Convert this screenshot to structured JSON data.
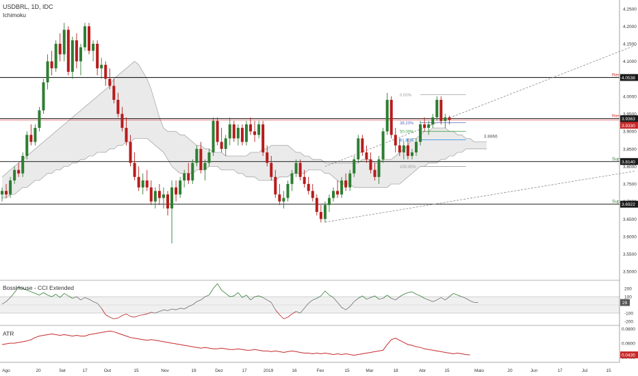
{
  "header": {
    "symbol_line": "USDBRL, 1D, IDC",
    "indicator": "Ichimoku"
  },
  "cci_panel": {
    "title": "BossHouse - CCI Extended"
  },
  "atr_panel": {
    "title": "ATR"
  },
  "colors": {
    "up": "#2e7d32",
    "down": "#b71c1c",
    "cloud": "#e6e6e6",
    "cloud_edge": "#a8a8a8",
    "res_label": "#d32f2f",
    "sup_label": "#2e7d32",
    "grid": "#d0d0d0",
    "fib_0": "#9e9e9e",
    "fib_38": "#5c6bc0",
    "fib_50": "#43a047",
    "fib_61": "#1e88e5",
    "channel": "#888888",
    "cci_line": "#6d6d6d",
    "atr_line": "#c62828",
    "badge_dark": "#1a1a1a",
    "badge_red": "#c62828"
  },
  "chart_data": [
    {
      "type": "candlestick",
      "title": "USDBRL, 1D, IDC",
      "subtitle": "Ichimoku",
      "ylim": [
        3.475,
        4.275
      ],
      "y_ticks": [
        "4.2500",
        "4.2000",
        "4.1500",
        "4.1000",
        "4.0500",
        "4.0000",
        "3.9500",
        "3.9000",
        "3.8500",
        "3.8000",
        "3.7500",
        "3.7000",
        "3.6500",
        "3.6000",
        "3.5500",
        "3.5000"
      ],
      "x_ticks": [
        "Ago",
        "20",
        "Set",
        "17",
        "Out",
        "15",
        "Nov",
        "19",
        "Dez",
        "17",
        "2019",
        "16",
        "Fev",
        "15",
        "Mar",
        "18",
        "Abr",
        "15",
        "Maio",
        "20",
        "Jun",
        "17",
        "Jul",
        "15"
      ],
      "ohlc": [
        [
          3.72,
          3.74,
          3.7,
          3.73
        ],
        [
          3.73,
          3.75,
          3.71,
          3.72
        ],
        [
          3.72,
          3.77,
          3.71,
          3.76
        ],
        [
          3.76,
          3.8,
          3.75,
          3.79
        ],
        [
          3.79,
          3.81,
          3.77,
          3.78
        ],
        [
          3.78,
          3.84,
          3.77,
          3.83
        ],
        [
          3.83,
          3.9,
          3.82,
          3.89
        ],
        [
          3.89,
          3.92,
          3.86,
          3.87
        ],
        [
          3.87,
          3.92,
          3.86,
          3.91
        ],
        [
          3.91,
          3.97,
          3.9,
          3.96
        ],
        [
          3.96,
          4.05,
          3.95,
          4.04
        ],
        [
          4.04,
          4.12,
          4.02,
          4.1
        ],
        [
          4.1,
          4.13,
          4.06,
          4.08
        ],
        [
          4.08,
          4.16,
          4.07,
          4.15
        ],
        [
          4.15,
          4.18,
          4.1,
          4.12
        ],
        [
          4.12,
          4.21,
          4.1,
          4.19
        ],
        [
          4.19,
          4.2,
          4.06,
          4.07
        ],
        [
          4.07,
          4.17,
          4.05,
          4.16
        ],
        [
          4.16,
          4.18,
          4.08,
          4.1
        ],
        [
          4.1,
          4.15,
          4.06,
          4.14
        ],
        [
          4.14,
          4.21,
          4.13,
          4.2
        ],
        [
          4.2,
          4.21,
          4.12,
          4.13
        ],
        [
          4.13,
          4.16,
          4.1,
          4.15
        ],
        [
          4.15,
          4.16,
          4.06,
          4.08
        ],
        [
          4.08,
          4.11,
          4.05,
          4.09
        ],
        [
          4.09,
          4.1,
          4.03,
          4.05
        ],
        [
          4.05,
          4.08,
          4.02,
          4.03
        ],
        [
          4.03,
          4.05,
          3.98,
          3.99
        ],
        [
          3.99,
          4.01,
          3.94,
          3.95
        ],
        [
          3.95,
          3.97,
          3.9,
          3.91
        ],
        [
          3.91,
          3.94,
          3.86,
          3.87
        ],
        [
          3.87,
          3.89,
          3.8,
          3.81
        ],
        [
          3.81,
          3.84,
          3.76,
          3.77
        ],
        [
          3.77,
          3.8,
          3.73,
          3.74
        ],
        [
          3.74,
          3.78,
          3.72,
          3.76
        ],
        [
          3.76,
          3.79,
          3.73,
          3.74
        ],
        [
          3.74,
          3.76,
          3.69,
          3.7
        ],
        [
          3.7,
          3.74,
          3.68,
          3.73
        ],
        [
          3.73,
          3.75,
          3.69,
          3.71
        ],
        [
          3.71,
          3.74,
          3.68,
          3.72
        ],
        [
          3.72,
          3.73,
          3.66,
          3.68
        ],
        [
          3.68,
          3.76,
          3.58,
          3.74
        ],
        [
          3.74,
          3.76,
          3.7,
          3.72
        ],
        [
          3.72,
          3.77,
          3.71,
          3.76
        ],
        [
          3.76,
          3.79,
          3.74,
          3.78
        ],
        [
          3.78,
          3.81,
          3.75,
          3.76
        ],
        [
          3.76,
          3.82,
          3.75,
          3.81
        ],
        [
          3.81,
          3.86,
          3.8,
          3.85
        ],
        [
          3.85,
          3.87,
          3.78,
          3.79
        ],
        [
          3.79,
          3.82,
          3.76,
          3.81
        ],
        [
          3.81,
          3.85,
          3.8,
          3.84
        ],
        [
          3.84,
          3.94,
          3.83,
          3.93
        ],
        [
          3.93,
          3.94,
          3.86,
          3.87
        ],
        [
          3.87,
          3.91,
          3.84,
          3.85
        ],
        [
          3.85,
          3.89,
          3.83,
          3.88
        ],
        [
          3.88,
          3.94,
          3.86,
          3.92
        ],
        [
          3.92,
          3.93,
          3.87,
          3.88
        ],
        [
          3.88,
          3.92,
          3.86,
          3.91
        ],
        [
          3.91,
          3.92,
          3.86,
          3.87
        ],
        [
          3.87,
          3.93,
          3.86,
          3.92
        ],
        [
          3.92,
          3.94,
          3.89,
          3.9
        ],
        [
          3.9,
          3.93,
          3.87,
          3.89
        ],
        [
          3.89,
          3.93,
          3.88,
          3.92
        ],
        [
          3.92,
          3.93,
          3.83,
          3.84
        ],
        [
          3.84,
          3.86,
          3.8,
          3.81
        ],
        [
          3.81,
          3.83,
          3.76,
          3.77
        ],
        [
          3.77,
          3.79,
          3.71,
          3.72
        ],
        [
          3.72,
          3.75,
          3.69,
          3.7
        ],
        [
          3.7,
          3.73,
          3.68,
          3.71
        ],
        [
          3.71,
          3.76,
          3.7,
          3.75
        ],
        [
          3.75,
          3.79,
          3.73,
          3.78
        ],
        [
          3.78,
          3.82,
          3.77,
          3.81
        ],
        [
          3.81,
          3.82,
          3.76,
          3.77
        ],
        [
          3.77,
          3.79,
          3.74,
          3.75
        ],
        [
          3.75,
          3.77,
          3.72,
          3.73
        ],
        [
          3.73,
          3.75,
          3.7,
          3.71
        ],
        [
          3.71,
          3.72,
          3.66,
          3.67
        ],
        [
          3.67,
          3.69,
          3.64,
          3.65
        ],
        [
          3.65,
          3.7,
          3.64,
          3.69
        ],
        [
          3.69,
          3.72,
          3.67,
          3.71
        ],
        [
          3.71,
          3.74,
          3.7,
          3.73
        ],
        [
          3.73,
          3.76,
          3.71,
          3.72
        ],
        [
          3.72,
          3.77,
          3.71,
          3.76
        ],
        [
          3.76,
          3.78,
          3.73,
          3.74
        ],
        [
          3.74,
          3.79,
          3.73,
          3.78
        ],
        [
          3.78,
          3.83,
          3.77,
          3.82
        ],
        [
          3.82,
          3.89,
          3.81,
          3.88
        ],
        [
          3.88,
          3.89,
          3.83,
          3.84
        ],
        [
          3.84,
          3.86,
          3.81,
          3.82
        ],
        [
          3.82,
          3.84,
          3.78,
          3.79
        ],
        [
          3.79,
          3.81,
          3.76,
          3.77
        ],
        [
          3.77,
          3.83,
          3.75,
          3.82
        ],
        [
          3.82,
          3.91,
          3.81,
          3.9
        ],
        [
          3.9,
          4.01,
          3.89,
          3.99
        ],
        [
          3.99,
          4.0,
          3.88,
          3.89
        ],
        [
          3.89,
          3.91,
          3.84,
          3.86
        ],
        [
          3.86,
          3.88,
          3.83,
          3.84
        ],
        [
          3.84,
          3.87,
          3.82,
          3.86
        ],
        [
          3.86,
          3.88,
          3.82,
          3.83
        ],
        [
          3.83,
          3.85,
          3.82,
          3.84
        ],
        [
          3.84,
          3.88,
          3.83,
          3.87
        ],
        [
          3.87,
          3.93,
          3.86,
          3.92
        ],
        [
          3.92,
          3.94,
          3.9,
          3.91
        ],
        [
          3.91,
          3.93,
          3.89,
          3.92
        ],
        [
          3.92,
          3.95,
          3.91,
          3.94
        ],
        [
          3.94,
          4.0,
          3.93,
          3.99
        ],
        [
          3.99,
          4.0,
          3.92,
          3.93
        ],
        [
          3.93,
          3.95,
          3.91,
          3.94
        ],
        [
          3.94,
          3.945,
          3.92,
          3.933
        ]
      ],
      "ichimoku_cloud_upper": [
        3.77,
        3.78,
        3.79,
        3.8,
        3.81,
        3.82,
        3.83,
        3.84,
        3.85,
        3.86,
        3.87,
        3.88,
        3.89,
        3.9,
        3.91,
        3.92,
        3.93,
        3.94,
        3.95,
        3.96,
        3.97,
        3.98,
        3.99,
        4.0,
        4.01,
        4.02,
        4.03,
        4.05,
        4.06,
        4.07,
        4.08,
        4.09,
        4.1,
        4.09,
        4.07,
        4.05,
        4.02,
        3.98,
        3.94,
        3.91,
        3.9,
        3.9,
        3.9,
        3.89,
        3.89,
        3.88,
        3.87,
        3.86,
        3.86,
        3.85,
        3.85,
        3.84,
        3.84,
        3.84,
        3.83,
        3.83,
        3.83,
        3.83,
        3.83,
        3.83,
        3.84,
        3.84,
        3.84,
        3.85,
        3.85,
        3.86,
        3.86,
        3.86,
        3.86,
        3.86,
        3.85,
        3.84,
        3.84,
        3.83,
        3.83,
        3.82,
        3.82,
        3.82,
        3.81,
        3.81,
        3.81,
        3.81,
        3.81,
        3.81,
        3.81,
        3.81,
        3.81,
        3.82,
        3.82,
        3.82,
        3.81,
        3.81,
        3.82,
        3.82,
        3.82,
        3.83,
        3.84,
        3.85,
        3.86,
        3.88,
        3.88,
        3.89,
        3.9,
        3.9,
        3.91,
        3.91,
        3.91,
        3.91,
        3.9,
        3.9,
        3.89,
        3.89,
        3.88,
        3.88,
        3.87,
        3.87,
        3.87,
        3.87
      ],
      "ichimoku_cloud_lower": [
        3.71,
        3.71,
        3.72,
        3.72,
        3.73,
        3.74,
        3.74,
        3.75,
        3.76,
        3.76,
        3.77,
        3.78,
        3.78,
        3.79,
        3.79,
        3.8,
        3.8,
        3.81,
        3.81,
        3.82,
        3.82,
        3.83,
        3.83,
        3.84,
        3.84,
        3.84,
        3.85,
        3.85,
        3.86,
        3.86,
        3.87,
        3.87,
        3.88,
        3.88,
        3.88,
        3.88,
        3.87,
        3.86,
        3.85,
        3.84,
        3.82,
        3.8,
        3.79,
        3.78,
        3.78,
        3.78,
        3.78,
        3.79,
        3.79,
        3.79,
        3.8,
        3.8,
        3.8,
        3.79,
        3.79,
        3.79,
        3.79,
        3.78,
        3.78,
        3.77,
        3.77,
        3.77,
        3.76,
        3.76,
        3.76,
        3.76,
        3.76,
        3.77,
        3.77,
        3.77,
        3.78,
        3.78,
        3.78,
        3.78,
        3.79,
        3.79,
        3.79,
        3.79,
        3.78,
        3.78,
        3.77,
        3.76,
        3.75,
        3.75,
        3.75,
        3.74,
        3.74,
        3.74,
        3.74,
        3.74,
        3.74,
        3.74,
        3.74,
        3.74,
        3.75,
        3.75,
        3.75,
        3.76,
        3.77,
        3.78,
        3.79,
        3.8,
        3.8,
        3.81,
        3.81,
        3.81,
        3.82,
        3.82,
        3.83,
        3.83,
        3.84,
        3.84,
        3.85,
        3.85,
        3.85,
        3.85,
        3.85,
        3.85
      ],
      "horizontal_levels": [
        {
          "label": "Res",
          "value": 4.0538,
          "text": "4.0538"
        },
        {
          "label": "Res",
          "value": 3.9363,
          "text": "3.9363"
        },
        {
          "label": "Sup",
          "value": 3.814,
          "text": "3.8140"
        },
        {
          "label": "Sup",
          "value": 3.6922,
          "text": "3.6922"
        }
      ],
      "last_price": {
        "value": 3.933,
        "text": "3.9330"
      },
      "fibonacci": [
        {
          "label": "0.00%",
          "value": 4.005
        },
        {
          "label": "38.20%",
          "value": 3.925
        },
        {
          "label": "50.00%",
          "value": 3.9
        },
        {
          "label": "61.80%",
          "value": 3.876
        },
        {
          "label": "100.00%",
          "value": 3.8
        }
      ],
      "fib_target_label": "3.8866",
      "channel_lower": {
        "start": [
          78,
          3.641
        ],
        "end": [
          153,
          3.787
        ]
      },
      "channel_upper": {
        "start": [
          78,
          3.8
        ],
        "end": [
          153,
          4.146
        ]
      }
    },
    {
      "type": "line",
      "title": "BossHouse - CCI Extended",
      "ylim": [
        -250,
        300
      ],
      "y_ticks": [
        "200",
        "100",
        "-100",
        "-200"
      ],
      "bands": [
        100,
        -100
      ],
      "last_value": "29",
      "values": [
        10,
        40,
        90,
        150,
        220,
        200,
        180,
        160,
        140,
        120,
        150,
        120,
        100,
        130,
        90,
        140,
        110,
        80,
        100,
        60,
        90,
        70,
        40,
        20,
        -40,
        -120,
        -150,
        -170,
        -160,
        -130,
        -110,
        -140,
        -150,
        -130,
        -120,
        -110,
        -90,
        -100,
        -80,
        -60,
        -70,
        -50,
        -60,
        -40,
        -50,
        -20,
        0,
        40,
        60,
        100,
        120,
        200,
        260,
        180,
        140,
        100,
        110,
        150,
        90,
        120,
        60,
        100,
        110,
        90,
        60,
        30,
        -60,
        -120,
        -170,
        -150,
        -110,
        -80,
        -100,
        -40,
        20,
        60,
        80,
        110,
        170,
        120,
        90,
        30,
        -30,
        -60,
        -20,
        40,
        80,
        110,
        70,
        90,
        110,
        70,
        80,
        120,
        80,
        60,
        100,
        130,
        150,
        160,
        130,
        110,
        80,
        60,
        40,
        60,
        90,
        60,
        100,
        140,
        120,
        100,
        80,
        50,
        30,
        29
      ]
    },
    {
      "type": "line",
      "title": "ATR",
      "ylim": [
        0.033,
        0.085
      ],
      "y_ticks": [
        "0.0800",
        "0.0600",
        "0.0400"
      ],
      "last_value": "0.0435",
      "values": [
        0.058,
        0.059,
        0.06,
        0.06,
        0.061,
        0.062,
        0.063,
        0.065,
        0.068,
        0.07,
        0.071,
        0.072,
        0.073,
        0.072,
        0.071,
        0.072,
        0.071,
        0.07,
        0.071,
        0.07,
        0.07,
        0.072,
        0.073,
        0.074,
        0.075,
        0.076,
        0.077,
        0.076,
        0.074,
        0.072,
        0.07,
        0.068,
        0.067,
        0.066,
        0.065,
        0.064,
        0.065,
        0.064,
        0.063,
        0.062,
        0.061,
        0.06,
        0.059,
        0.058,
        0.057,
        0.056,
        0.055,
        0.054,
        0.053,
        0.054,
        0.053,
        0.052,
        0.052,
        0.053,
        0.052,
        0.051,
        0.051,
        0.052,
        0.051,
        0.05,
        0.05,
        0.051,
        0.05,
        0.049,
        0.049,
        0.048,
        0.049,
        0.048,
        0.047,
        0.048,
        0.049,
        0.048,
        0.047,
        0.046,
        0.046,
        0.045,
        0.046,
        0.045,
        0.046,
        0.045,
        0.044,
        0.045,
        0.044,
        0.045,
        0.044,
        0.043,
        0.044,
        0.045,
        0.046,
        0.047,
        0.048,
        0.049,
        0.05,
        0.058,
        0.065,
        0.067,
        0.064,
        0.061,
        0.058,
        0.057,
        0.055,
        0.054,
        0.052,
        0.051,
        0.05,
        0.049,
        0.048,
        0.047,
        0.046,
        0.045,
        0.046,
        0.045,
        0.044,
        0.0435
      ]
    }
  ]
}
